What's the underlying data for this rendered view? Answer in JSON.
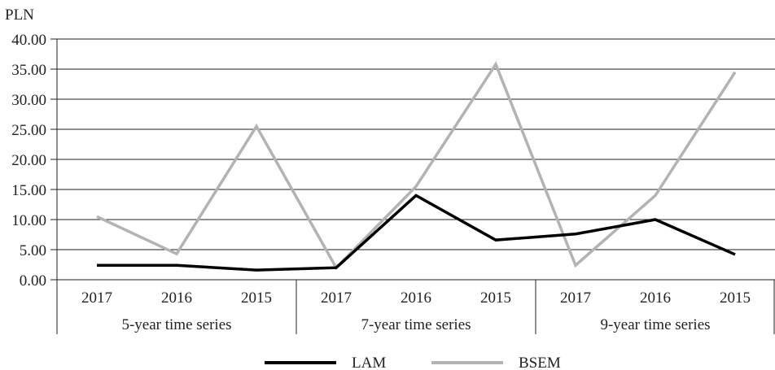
{
  "chart_data": {
    "type": "line",
    "ylabel": "PLN",
    "ylim": [
      0,
      40
    ],
    "yticks": [
      "0.00",
      "5.00",
      "10.00",
      "15.00",
      "20.00",
      "25.00",
      "30.00",
      "35.00",
      "40.00"
    ],
    "grid": true,
    "legend_position": "bottom-center",
    "groups": [
      {
        "label": "5-year time series",
        "categories": [
          "2017",
          "2016",
          "2015"
        ]
      },
      {
        "label": "7-year time series",
        "categories": [
          "2017",
          "2016",
          "2015"
        ]
      },
      {
        "label": "9-year time series",
        "categories": [
          "2017",
          "2016",
          "2015"
        ]
      }
    ],
    "series": [
      {
        "name": "LAM",
        "color": "#000000",
        "values": [
          2.4,
          2.4,
          1.6,
          2.0,
          14.0,
          6.6,
          7.6,
          10.0,
          4.2
        ]
      },
      {
        "name": "BSEM",
        "color": "#b3b3b3",
        "values": [
          10.5,
          4.3,
          25.5,
          2.0,
          15.5,
          35.8,
          2.4,
          14.0,
          34.5
        ]
      }
    ]
  }
}
